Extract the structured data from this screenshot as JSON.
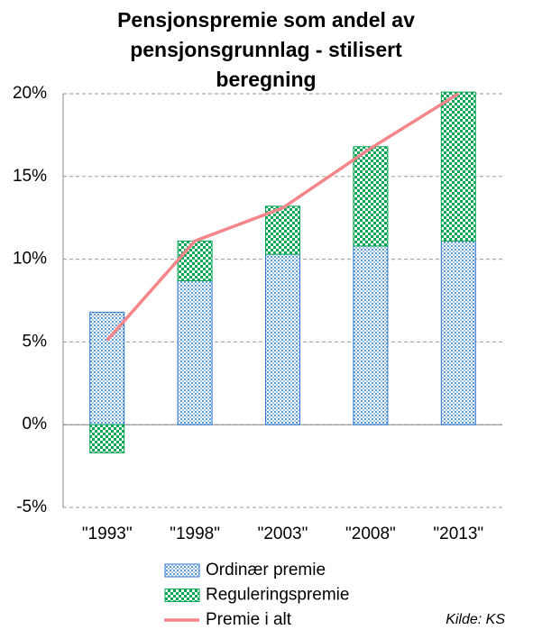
{
  "chart_data": {
    "type": "bar",
    "stacked": true,
    "title": "Pensjonspremie som andel av pensjonsgrunnlag - stilisert beregning",
    "categories": [
      "\"1993\"",
      "\"1998\"",
      "\"2003\"",
      "\"2008\"",
      "\"2013\""
    ],
    "series": [
      {
        "name": "Ordinær premie",
        "type": "bar",
        "color": "#2e75d6",
        "values": [
          6.8,
          8.7,
          10.3,
          10.8,
          11.1
        ]
      },
      {
        "name": "Reguleringspremie",
        "type": "bar",
        "color": "#00a651",
        "values": [
          -1.7,
          2.4,
          2.9,
          6.0,
          9.0
        ]
      },
      {
        "name": "Premie i alt",
        "type": "line",
        "color": "#f4858a",
        "values": [
          5.1,
          11.1,
          13.1,
          16.7,
          20.0
        ]
      }
    ],
    "ylim": [
      -5,
      20
    ],
    "yticks": [
      {
        "value": -5,
        "label": "-5%"
      },
      {
        "value": 0,
        "label": "0%"
      },
      {
        "value": 5,
        "label": "5%"
      },
      {
        "value": 10,
        "label": "10%"
      },
      {
        "value": 15,
        "label": "15%"
      },
      {
        "value": 20,
        "label": "20%"
      }
    ],
    "grid": true,
    "annotation": "Kilde: KS"
  }
}
